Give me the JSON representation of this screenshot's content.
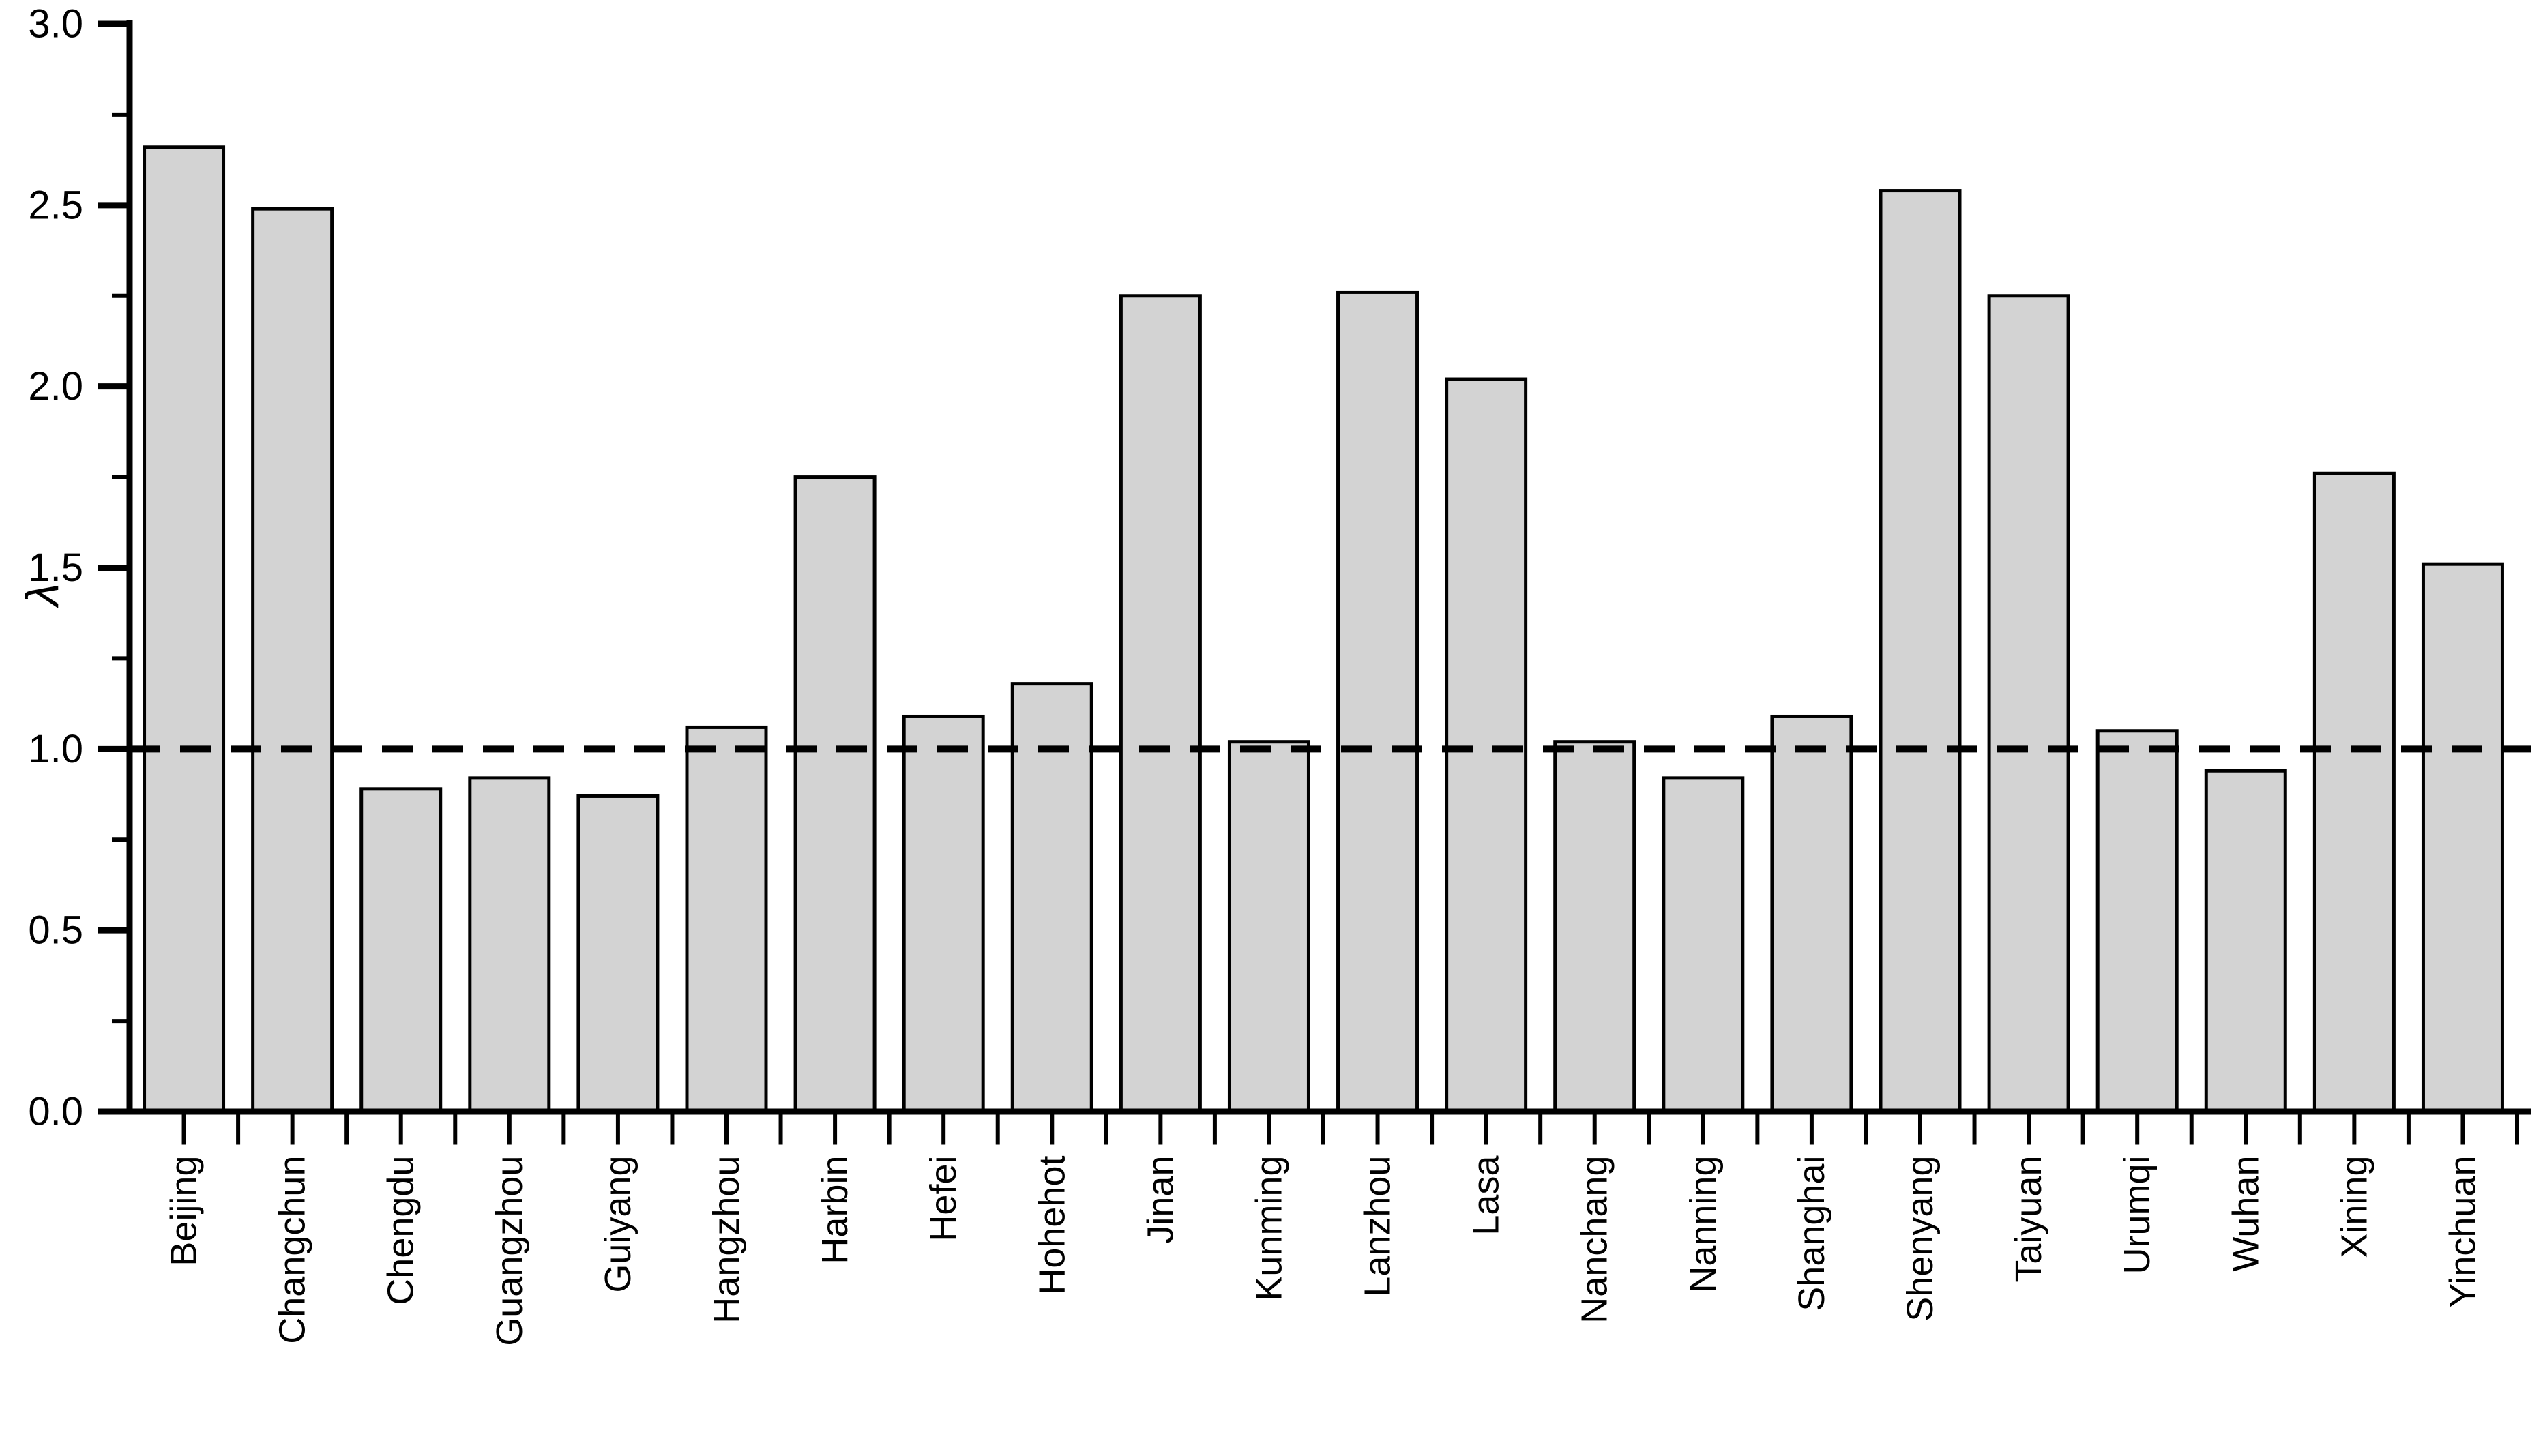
{
  "chart_data": {
    "type": "bar",
    "title": "",
    "xlabel": "",
    "ylabel": "λ",
    "categories": [
      "Beijing",
      "Changchun",
      "Chengdu",
      "Guangzhou",
      "Guiyang",
      "Hangzhou",
      "Harbin",
      "Hefei",
      "Hohehot",
      "Jinan",
      "Kunming",
      "Lanzhou",
      "Lasa",
      "Nanchang",
      "Nanning",
      "Shanghai",
      "Shenyang",
      "Taiyuan",
      "Urumqi",
      "Wuhan",
      "Xining",
      "Yinchuan"
    ],
    "values": [
      2.66,
      2.49,
      0.89,
      0.92,
      0.87,
      1.06,
      1.75,
      1.09,
      1.18,
      2.25,
      1.02,
      2.26,
      2.02,
      1.02,
      0.92,
      1.09,
      2.54,
      2.25,
      1.05,
      0.94,
      1.76,
      1.51
    ],
    "ylim": [
      0,
      3
    ],
    "ytick_step": 0.5,
    "ytick_minor_step": 0.25,
    "ytick_labels": [
      "0.0",
      "0.5",
      "1.0",
      "1.5",
      "2.0",
      "2.5",
      "3.0"
    ],
    "reference_line": {
      "value": 1.0,
      "style": "dashed",
      "color": "#000000"
    },
    "bar_fill": "#d3d3d3",
    "bar_stroke": "#000000",
    "axis_color": "#000000",
    "grid": false,
    "legend": false
  }
}
